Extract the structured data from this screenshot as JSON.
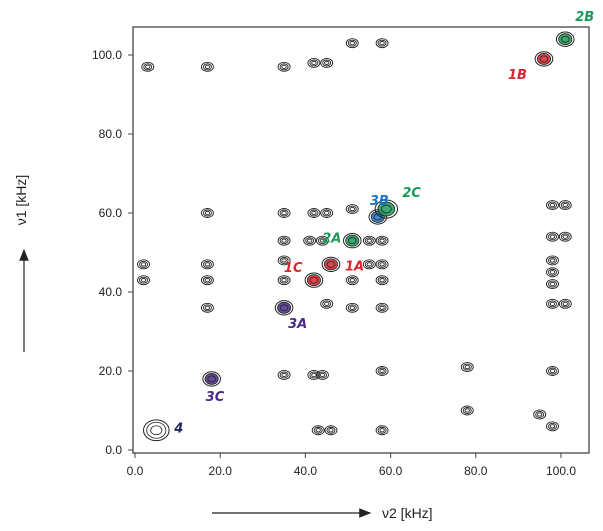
{
  "chart_data": {
    "type": "scatter",
    "subtype": "2D NMR contour spectrum",
    "title": "",
    "xlabel": "ν2  [kHz]",
    "ylabel": "ν1  [kHz]",
    "xlim": [
      0,
      105
    ],
    "ylim": [
      0,
      105
    ],
    "x_ticks": [
      "0.0",
      "20.0",
      "40.0",
      "60.0",
      "80.0",
      "100.0"
    ],
    "y_ticks": [
      "0.0",
      "20.0",
      "40.0",
      "60.0",
      "80.0",
      "100.0"
    ],
    "grid": false,
    "colors": {
      "red": "#d9262e",
      "green": "#1a9a57",
      "blue": "#1f74c4",
      "purple": "#4a2b8c",
      "navy": "#1a2a66",
      "contour": "#222222"
    },
    "diagonal_peaks": [
      {
        "label": "4",
        "x": 5,
        "y": 5,
        "color": "navy"
      },
      {
        "label": "3C",
        "x": 18,
        "y": 18,
        "color": "purple"
      },
      {
        "label": "3A",
        "x": 35,
        "y": 36,
        "color": "purple"
      },
      {
        "label": "1C",
        "x": 42,
        "y": 43,
        "color": "red"
      },
      {
        "label": "1A",
        "x": 46,
        "y": 47,
        "color": "red"
      },
      {
        "label": "2A",
        "x": 51,
        "y": 53,
        "color": "green"
      },
      {
        "label": "3B",
        "x": 57,
        "y": 59,
        "color": "blue"
      },
      {
        "label": "2C",
        "x": 59,
        "y": 61,
        "color": "green"
      },
      {
        "label": "1B",
        "x": 96,
        "y": 99,
        "color": "red"
      },
      {
        "label": "2B",
        "x": 101,
        "y": 104,
        "color": "green"
      }
    ],
    "cross_peaks": [
      [
        3,
        97
      ],
      [
        17,
        97
      ],
      [
        35,
        97
      ],
      [
        42,
        98
      ],
      [
        45,
        98
      ],
      [
        51,
        103
      ],
      [
        58,
        103
      ],
      [
        17,
        60
      ],
      [
        35,
        60
      ],
      [
        42,
        60
      ],
      [
        45,
        60
      ],
      [
        51,
        61
      ],
      [
        35,
        53
      ],
      [
        41,
        53
      ],
      [
        44,
        53
      ],
      [
        55,
        53
      ],
      [
        58,
        53
      ],
      [
        2,
        47
      ],
      [
        17,
        47
      ],
      [
        35,
        48
      ],
      [
        55,
        47
      ],
      [
        58,
        47
      ],
      [
        2,
        43
      ],
      [
        17,
        43
      ],
      [
        35,
        43
      ],
      [
        51,
        43
      ],
      [
        58,
        43
      ],
      [
        17,
        36
      ],
      [
        45,
        37
      ],
      [
        51,
        36
      ],
      [
        58,
        36
      ],
      [
        35,
        19
      ],
      [
        42,
        19
      ],
      [
        44,
        19
      ],
      [
        58,
        20
      ],
      [
        78,
        21
      ],
      [
        43,
        5
      ],
      [
        46,
        5
      ],
      [
        58,
        5
      ],
      [
        78,
        10
      ],
      [
        98,
        62
      ],
      [
        101,
        62
      ],
      [
        98,
        54
      ],
      [
        101,
        54
      ],
      [
        98,
        48
      ],
      [
        98,
        45
      ],
      [
        98,
        42
      ],
      [
        98,
        37
      ],
      [
        101,
        37
      ],
      [
        98,
        20
      ],
      [
        98,
        6
      ],
      [
        95,
        9
      ]
    ]
  }
}
